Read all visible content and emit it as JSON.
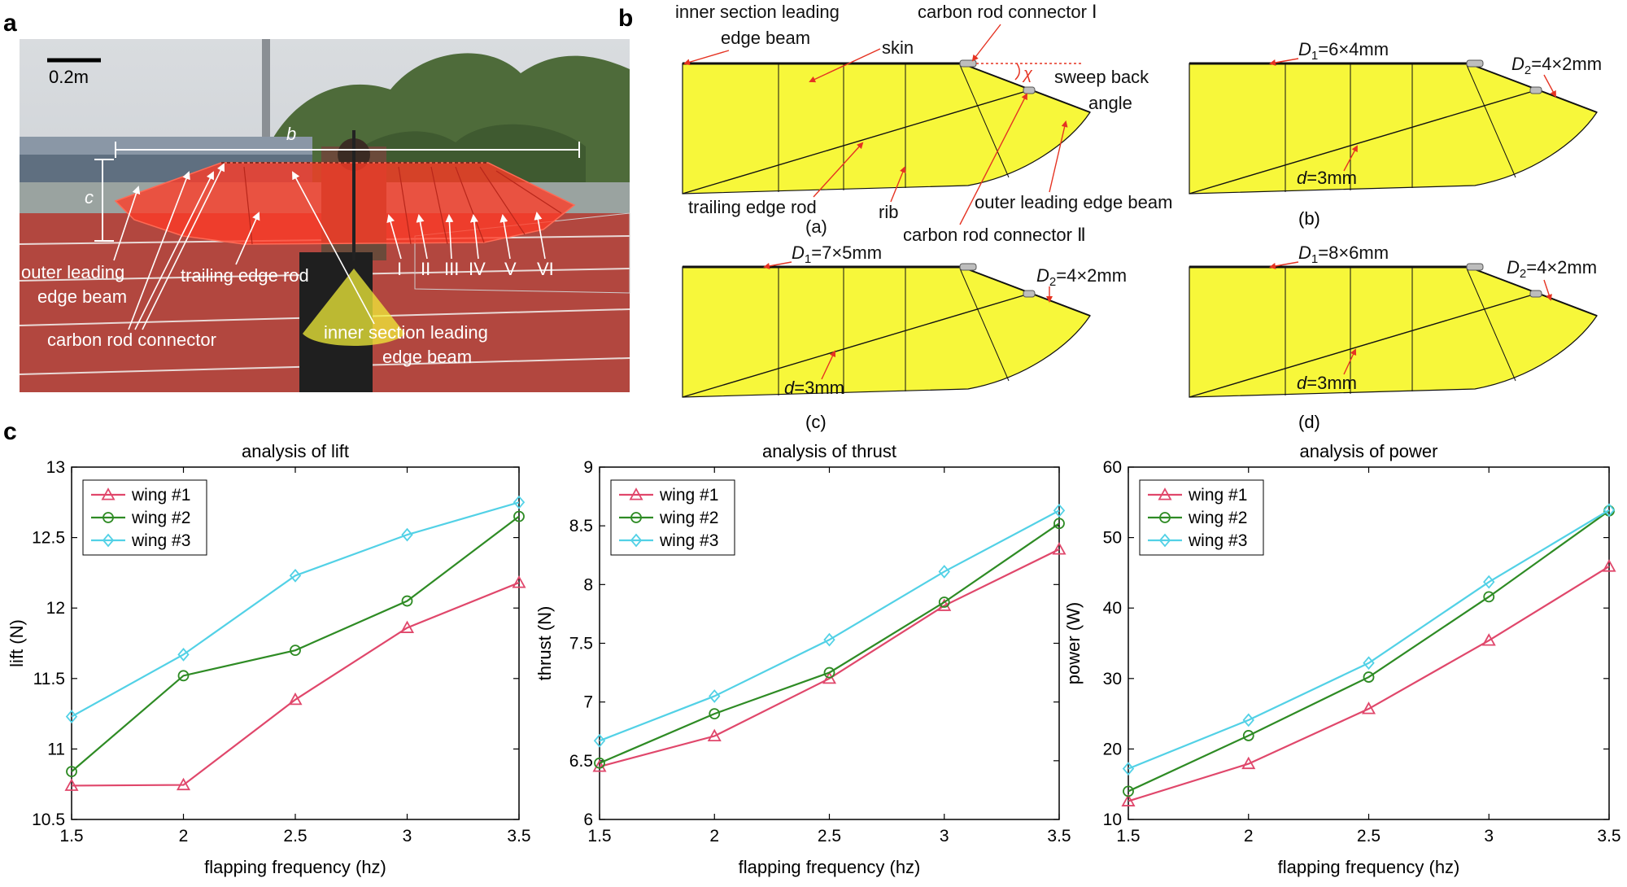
{
  "panel_labels": {
    "a": "a",
    "b": "b",
    "c": "c"
  },
  "photo": {
    "scale_bar": "0.2m",
    "dim_b": "b",
    "dim_c": "c",
    "rib_labels": [
      "I",
      "II",
      "III",
      "IV",
      "V",
      "VI"
    ],
    "labels": {
      "outer_leading_1": "outer leading",
      "outer_leading_2": "edge beam",
      "trailing_edge_rod": "trailing edge rod",
      "carbon_rod_connector": "carbon rod connector",
      "inner_section_1": "inner section leading",
      "inner_section_2": "edge beam"
    }
  },
  "diagrams": {
    "a": {
      "caption": "(a)",
      "inner_section_1": "inner section leading",
      "inner_section_2": "edge beam",
      "carbon_rod_connector_I": "carbon rod connector Ⅰ",
      "skin": "skin",
      "sweep_1": "sweep back",
      "sweep_2": "angle",
      "chi": "χ",
      "trailing_edge_rod": "trailing edge rod",
      "rib": "rib",
      "outer_leading": "outer leading edge beam",
      "carbon_rod_connector_II": "carbon rod connector Ⅱ"
    },
    "b": {
      "caption": "(b)",
      "D1_sym": "D",
      "D1_sub": "1",
      "D1_val": "=6×4mm",
      "D2_sym": "D",
      "D2_sub": "2",
      "D2_val": "=4×2mm",
      "d_sym": "d",
      "d_val": "=3mm"
    },
    "c": {
      "caption": "(c)",
      "D1_sym": "D",
      "D1_sub": "1",
      "D1_val": "=7×5mm",
      "D2_sym": "D",
      "D2_sub": "2",
      "D2_val": "=4×2mm",
      "d_sym": "d",
      "d_val": "=3mm"
    },
    "d": {
      "caption": "(d)",
      "D1_sym": "D",
      "D1_sub": "1",
      "D1_val": "=8×6mm",
      "D2_sym": "D",
      "D2_sub": "2",
      "D2_val": "=4×2mm",
      "d_sym": "d",
      "d_val": "=3mm"
    }
  },
  "colors": {
    "wing1": "#e0476b",
    "wing2": "#2e8b24",
    "wing3": "#52d1e6",
    "wing_fill": "#f7f73a",
    "wing_red": "#ff3b26"
  },
  "chart_data": [
    {
      "type": "line",
      "title": "analysis of lift",
      "xlabel": "flapping frequency (hz)",
      "ylabel": "lift (N)",
      "x": [
        1.5,
        2,
        2.5,
        3,
        3.5
      ],
      "xticks": [
        "1.5",
        "2",
        "2.5",
        "3",
        "3.5"
      ],
      "xlim": [
        1.5,
        3.5
      ],
      "ylim": [
        10.5,
        13
      ],
      "yticks": [
        "10.5",
        "11",
        "11.5",
        "12",
        "12.5",
        "13"
      ],
      "legend_position": "top-left",
      "series": [
        {
          "name": "wing #1",
          "marker": "triangle",
          "values": [
            10.74,
            10.745,
            11.35,
            11.86,
            12.18
          ]
        },
        {
          "name": "wing #2",
          "marker": "circle",
          "values": [
            10.84,
            11.52,
            11.7,
            12.05,
            12.65
          ]
        },
        {
          "name": "wing #3",
          "marker": "diamond",
          "values": [
            11.23,
            11.67,
            12.23,
            12.52,
            12.75
          ]
        }
      ]
    },
    {
      "type": "line",
      "title": "analysis of thrust",
      "xlabel": "flapping frequency (hz)",
      "ylabel": "thrust (N)",
      "x": [
        1.5,
        2,
        2.5,
        3,
        3.5
      ],
      "xticks": [
        "1.5",
        "2",
        "2.5",
        "3",
        "3.5"
      ],
      "xlim": [
        1.5,
        3.5
      ],
      "ylim": [
        6,
        9
      ],
      "yticks": [
        "6",
        "6.5",
        "7",
        "7.5",
        "8",
        "8.5",
        "9"
      ],
      "legend_position": "top-left",
      "series": [
        {
          "name": "wing #1",
          "marker": "triangle",
          "values": [
            6.45,
            6.71,
            7.2,
            7.82,
            8.3
          ]
        },
        {
          "name": "wing #2",
          "marker": "circle",
          "values": [
            6.48,
            6.9,
            7.25,
            7.85,
            8.52
          ]
        },
        {
          "name": "wing #3",
          "marker": "diamond",
          "values": [
            6.67,
            7.05,
            7.53,
            8.11,
            8.63
          ]
        }
      ]
    },
    {
      "type": "line",
      "title": "analysis of power",
      "xlabel": "flapping frequency (hz)",
      "ylabel": "power (W)",
      "x": [
        1.5,
        2,
        2.5,
        3,
        3.5
      ],
      "xticks": [
        "1.5",
        "2",
        "2.5",
        "3",
        "3.5"
      ],
      "xlim": [
        1.5,
        3.5
      ],
      "ylim": [
        10,
        60
      ],
      "yticks": [
        "10",
        "20",
        "30",
        "40",
        "50",
        "60"
      ],
      "legend_position": "top-left",
      "series": [
        {
          "name": "wing #1",
          "marker": "triangle",
          "values": [
            12.6,
            17.9,
            25.7,
            35.4,
            45.9
          ]
        },
        {
          "name": "wing #2",
          "marker": "circle",
          "values": [
            14.0,
            21.9,
            30.2,
            41.6,
            53.8
          ]
        },
        {
          "name": "wing #3",
          "marker": "diamond",
          "values": [
            17.2,
            24.1,
            32.2,
            43.7,
            53.9
          ]
        }
      ]
    }
  ]
}
